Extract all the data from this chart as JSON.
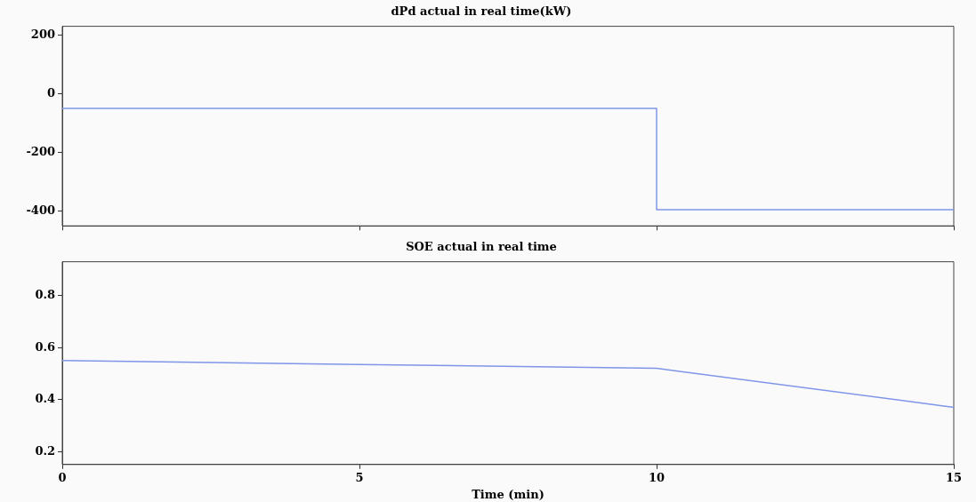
{
  "chart_data": [
    {
      "type": "step",
      "title": "dPd actual in real time(kW)",
      "x": [
        0,
        10,
        15
      ],
      "values": [
        -50,
        -395,
        -395
      ],
      "color": "#7f95e8",
      "xlim": [
        0,
        15
      ],
      "xticks": [
        0,
        5,
        10,
        15
      ],
      "ylim": [
        -450,
        230
      ],
      "yticks": [
        -400,
        -200,
        0,
        200
      ],
      "tick_labels": "y",
      "grid": false,
      "legend": false
    },
    {
      "type": "line",
      "title": "SOE actual in real time",
      "xlabel": "Time (min)",
      "x": [
        0,
        5,
        10,
        15
      ],
      "values": [
        0.55,
        0.535,
        0.52,
        0.37
      ],
      "color": "#7f95e8",
      "xlim": [
        0,
        15
      ],
      "xticks": [
        0,
        5,
        10,
        15
      ],
      "ylim": [
        0.15,
        0.93
      ],
      "yticks": [
        0.2,
        0.4,
        0.6,
        0.8
      ],
      "grid": false,
      "legend": false
    }
  ]
}
